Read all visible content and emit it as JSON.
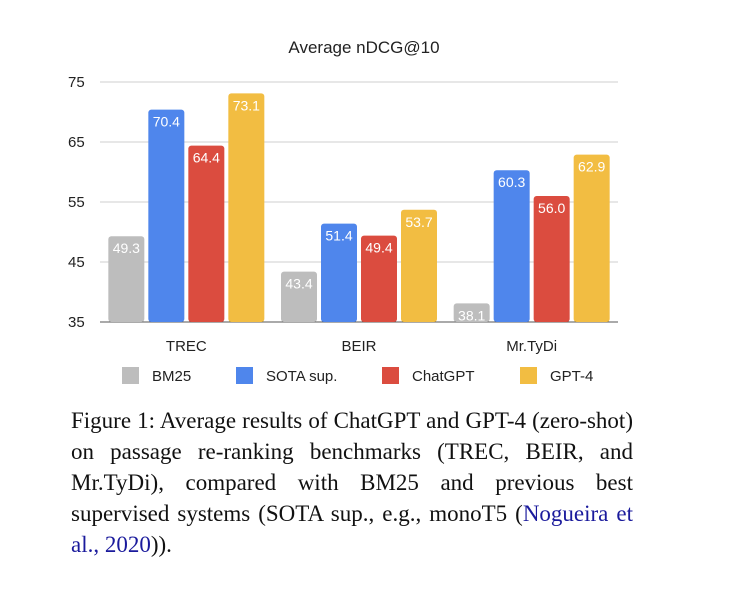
{
  "chart_data": {
    "type": "bar",
    "title": "Average nDCG@10",
    "categories": [
      "TREC",
      "BEIR",
      "Mr.TyDi"
    ],
    "ylim": [
      35,
      75
    ],
    "yticks": [
      35,
      45,
      55,
      65,
      75
    ],
    "grid": true,
    "legend_position": "bottom",
    "series": [
      {
        "name": "BM25",
        "color": "#bdbdbd",
        "values": [
          49.3,
          43.4,
          38.1
        ],
        "labels": [
          "49.3",
          "43.4",
          "38.1"
        ]
      },
      {
        "name": "SOTA sup.",
        "color": "#4f86ec",
        "values": [
          70.4,
          51.4,
          60.3
        ],
        "labels": [
          "70.4",
          "51.4",
          "60.3"
        ]
      },
      {
        "name": "ChatGPT",
        "color": "#db4c3f",
        "values": [
          64.4,
          49.4,
          56.0
        ],
        "labels": [
          "64.4",
          "49.4",
          "56.0"
        ]
      },
      {
        "name": "GPT-4",
        "color": "#f2bd42",
        "values": [
          73.1,
          53.7,
          62.9
        ],
        "labels": [
          "73.1",
          "53.7",
          "62.9"
        ]
      }
    ]
  },
  "caption": {
    "text": "Figure 1:  Average results of ChatGPT and GPT-4 (zero-shot) on passage re-ranking benchmarks (TREC, BEIR, and Mr.TyDi), compared with BM25 and previous best supervised systems (SOTA sup., e.g., monoT5 (",
    "citation": "Nogueira et al., 2020",
    "end": "))."
  }
}
